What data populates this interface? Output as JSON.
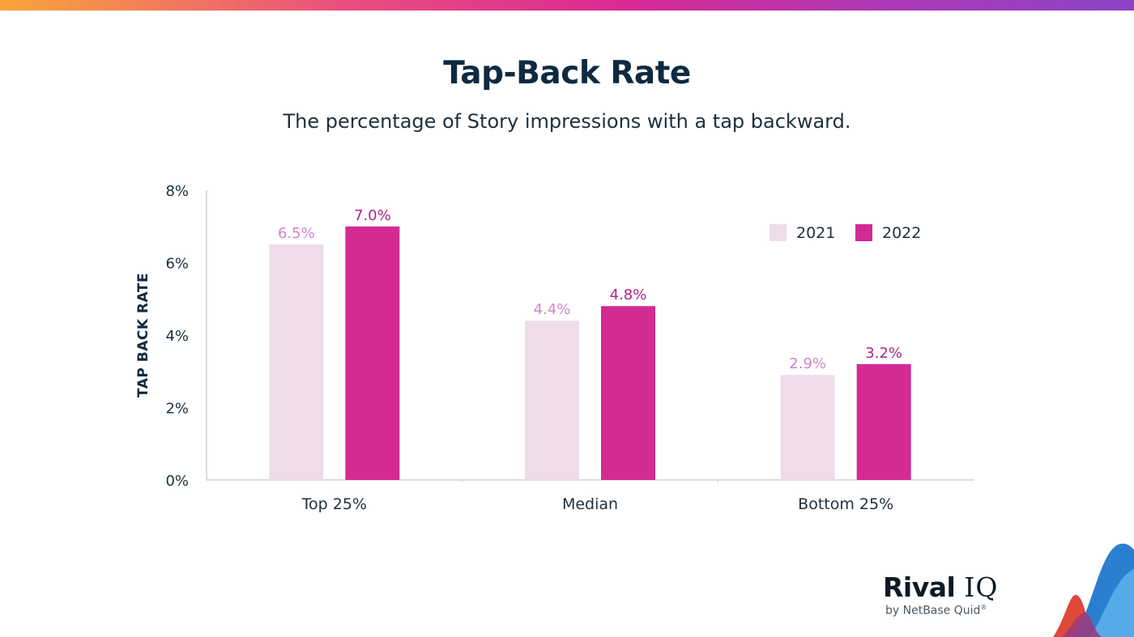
{
  "header": {
    "title": "Tap-Back Rate",
    "subtitle": "The percentage of Story impressions with a tap backward."
  },
  "chart_data": {
    "type": "bar",
    "categories": [
      "Top 25%",
      "Median",
      "Bottom 25%"
    ],
    "series": [
      {
        "name": "2021",
        "values": [
          6.5,
          4.4,
          2.9
        ],
        "labels": [
          "6.5%",
          "4.4%",
          "2.9%"
        ],
        "color": "#eedcec",
        "label_color": "#cf86c6"
      },
      {
        "name": "2022",
        "values": [
          7.0,
          4.8,
          3.2
        ],
        "labels": [
          "7.0%",
          "4.8%",
          "3.2%"
        ],
        "color": "#d42a94",
        "label_color": "#b12489"
      }
    ],
    "ylabel": "TAP BACK RATE",
    "ylim": [
      0,
      8
    ],
    "yticks": [
      0,
      2,
      4,
      6,
      8
    ],
    "ytick_labels": [
      "0%",
      "2%",
      "4%",
      "6%",
      "8%"
    ],
    "grid": false,
    "legend_position": "top-right"
  },
  "branding": {
    "logo_main": "Rival",
    "logo_iq": "IQ",
    "logo_sub": "by NetBase Quid",
    "logo_mark": "®"
  },
  "colors": {
    "title": "#0e2a40",
    "axis": "#b8b8b8"
  }
}
